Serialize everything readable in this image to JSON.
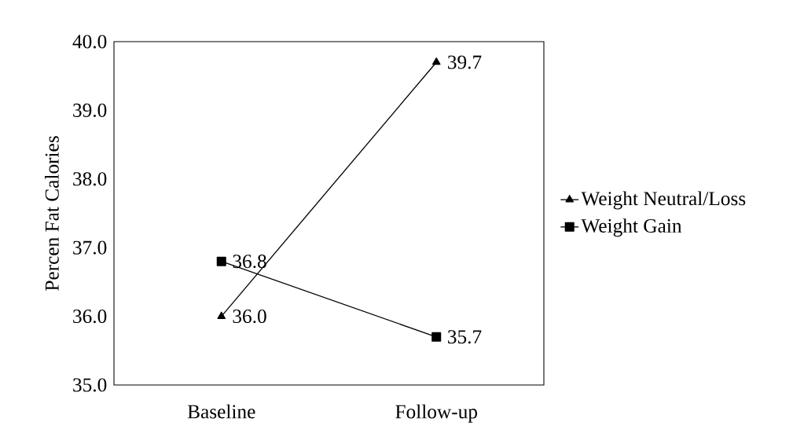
{
  "chart_data": {
    "type": "line",
    "ylabel": "Percen Fat Calories",
    "categories": [
      "Baseline",
      "Follow-up"
    ],
    "series": [
      {
        "name": "Weight Neutral/Loss",
        "color": "#000000",
        "marker": "triangle",
        "values": [
          36.0,
          39.7
        ],
        "value_labels": [
          "36.0",
          "39.7"
        ]
      },
      {
        "name": "Weight Gain",
        "color": "#000000",
        "marker": "square",
        "values": [
          36.8,
          35.7
        ],
        "value_labels": [
          "36.8",
          "35.7"
        ]
      }
    ],
    "ylim": [
      35,
      40
    ],
    "yticks": [
      {
        "value": 35,
        "label": "35.0"
      },
      {
        "value": 36,
        "label": "36.0"
      },
      {
        "value": 37,
        "label": "37.0"
      },
      {
        "value": 38,
        "label": "38.0"
      },
      {
        "value": 39,
        "label": "39.0"
      },
      {
        "value": 40,
        "label": "40.0"
      }
    ],
    "legend": "right",
    "grid": false,
    "line_style": "solid"
  }
}
